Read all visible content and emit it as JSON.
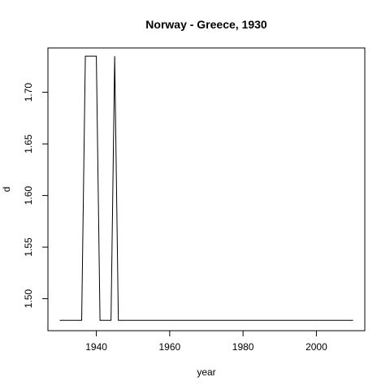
{
  "chart_data": {
    "type": "line",
    "title": "Norway - Greece, 1930",
    "xlabel": "year",
    "ylabel": "d",
    "xlim": [
      1926.8,
      2013.2
    ],
    "ylim": [
      1.469,
      1.743
    ],
    "x_ticks": [
      1940,
      1960,
      1980,
      2000
    ],
    "y_ticks": [
      1.5,
      1.55,
      1.6,
      1.65,
      1.7
    ],
    "x_tick_labels": [
      "1940",
      "1960",
      "1980",
      "2000"
    ],
    "y_tick_labels": [
      "1.50",
      "1.55",
      "1.60",
      "1.65",
      "1.70"
    ],
    "grid": false,
    "series": [
      {
        "x": [
          1930,
          1936,
          1937,
          1940,
          1941,
          1944,
          1945,
          1946,
          2010
        ],
        "y": [
          1.479,
          1.479,
          1.735,
          1.735,
          1.479,
          1.479,
          1.735,
          1.479,
          1.479
        ]
      }
    ]
  }
}
